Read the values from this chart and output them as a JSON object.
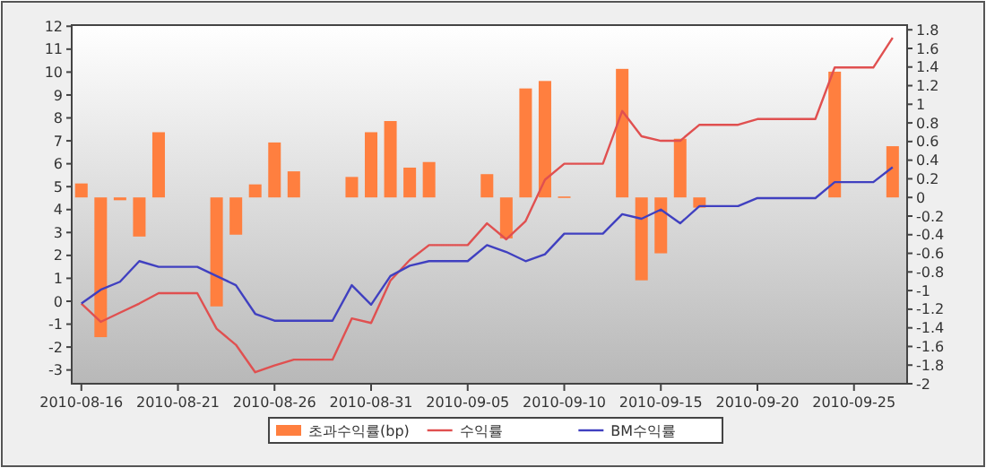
{
  "chart_data": {
    "type": "bar",
    "legend": "bottom",
    "xlim": [
      "2010-08-15T12:00",
      "2010-09-27T18:00"
    ],
    "xticks": [
      {
        "value": "2010-08-16",
        "label": "2010-08-16"
      },
      {
        "value": "2010-08-21",
        "label": "2010-08-21"
      },
      {
        "value": "2010-08-26",
        "label": "2010-08-26"
      },
      {
        "value": "2010-08-31",
        "label": "2010-08-31"
      },
      {
        "value": "2010-09-05",
        "label": "2010-09-05"
      },
      {
        "value": "2010-09-10",
        "label": "2010-09-10"
      },
      {
        "value": "2010-09-15",
        "label": "2010-09-15"
      },
      {
        "value": "2010-09-20",
        "label": "2010-09-20"
      },
      {
        "value": "2010-09-25",
        "label": "2010-09-25"
      }
    ],
    "ylim": [
      -3.6,
      12.05
    ],
    "yticks": [
      -3,
      -2,
      -1,
      0,
      1,
      2,
      3,
      4,
      5,
      6,
      7,
      8,
      9,
      10,
      11,
      12
    ],
    "y2lim": [
      -2,
      1.85
    ],
    "y2ticks": [
      -2,
      -1.8,
      -1.6,
      -1.4,
      -1.2,
      -1,
      -0.8,
      -0.6,
      -0.4,
      -0.2,
      0,
      0.2,
      0.4,
      0.6,
      0.8,
      1,
      1.2,
      1.4,
      1.6,
      1.8
    ],
    "series": [
      {
        "name": "초과수익률(bp)",
        "axis": "y2",
        "color": "#ff7f3f",
        "x": [
          "2010-08-16",
          "2010-08-17",
          "2010-08-18",
          "2010-08-19",
          "2010-08-20",
          "2010-08-23",
          "2010-08-24",
          "2010-08-25",
          "2010-08-26",
          "2010-08-27",
          "2010-08-30",
          "2010-08-31",
          "2010-09-01",
          "2010-09-02",
          "2010-09-03",
          "2010-09-06",
          "2010-09-07",
          "2010-09-08",
          "2010-09-09",
          "2010-09-10",
          "2010-09-13",
          "2010-09-14",
          "2010-09-15",
          "2010-09-16",
          "2010-09-17",
          "2010-09-24",
          "2010-09-27"
        ],
        "values": [
          0.15,
          -1.5,
          -0.03,
          -0.42,
          0.7,
          -1.17,
          -0.4,
          0.14,
          0.59,
          0.28,
          0.22,
          0.7,
          0.82,
          0.32,
          0.38,
          0.25,
          -0.44,
          1.17,
          1.25,
          0.01,
          1.38,
          -0.89,
          -0.6,
          0.63,
          -0.11,
          1.35,
          0.55
        ]
      },
      {
        "name": "수익률",
        "type": "line",
        "color": "#e05050",
        "x": [
          "2010-08-16",
          "2010-08-17",
          "2010-08-18",
          "2010-08-19",
          "2010-08-20",
          "2010-08-22",
          "2010-08-23",
          "2010-08-24",
          "2010-08-25",
          "2010-08-26",
          "2010-08-27",
          "2010-08-29",
          "2010-08-30",
          "2010-08-31",
          "2010-09-01",
          "2010-09-02",
          "2010-09-03",
          "2010-09-05",
          "2010-09-06",
          "2010-09-07",
          "2010-09-08",
          "2010-09-09",
          "2010-09-10",
          "2010-09-12",
          "2010-09-13",
          "2010-09-14",
          "2010-09-15",
          "2010-09-16",
          "2010-09-17",
          "2010-09-19",
          "2010-09-20",
          "2010-09-23",
          "2010-09-24",
          "2010-09-26",
          "2010-09-27"
        ],
        "values": [
          -0.1,
          -0.9,
          -0.5,
          -0.1,
          0.35,
          0.35,
          -1.2,
          -1.9,
          -3.1,
          -2.8,
          -2.55,
          -2.55,
          -0.75,
          -0.95,
          0.9,
          1.8,
          2.45,
          2.45,
          3.4,
          2.7,
          3.5,
          5.3,
          6.0,
          6.0,
          8.3,
          7.2,
          7.0,
          7.0,
          7.7,
          7.7,
          7.95,
          7.95,
          10.2,
          10.2,
          11.5
        ]
      },
      {
        "name": "BM수익률",
        "type": "line",
        "color": "#4040c0",
        "x": [
          "2010-08-16",
          "2010-08-17",
          "2010-08-18",
          "2010-08-19",
          "2010-08-20",
          "2010-08-22",
          "2010-08-23",
          "2010-08-24",
          "2010-08-25",
          "2010-08-26",
          "2010-08-29",
          "2010-08-30",
          "2010-08-31",
          "2010-09-01",
          "2010-09-02",
          "2010-09-03",
          "2010-09-05",
          "2010-09-06",
          "2010-09-07",
          "2010-09-08",
          "2010-09-09",
          "2010-09-10",
          "2010-09-12",
          "2010-09-13",
          "2010-09-14",
          "2010-09-15",
          "2010-09-16",
          "2010-09-17",
          "2010-09-19",
          "2010-09-20",
          "2010-09-23",
          "2010-09-24",
          "2010-09-26",
          "2010-09-27"
        ],
        "values": [
          -0.1,
          0.5,
          0.85,
          1.75,
          1.5,
          1.5,
          1.1,
          0.7,
          -0.55,
          -0.85,
          -0.85,
          0.7,
          -0.15,
          1.1,
          1.55,
          1.75,
          1.75,
          2.45,
          2.15,
          1.75,
          2.05,
          2.95,
          2.95,
          3.8,
          3.6,
          4.0,
          3.4,
          4.15,
          4.15,
          4.5,
          4.5,
          5.2,
          5.2,
          5.85
        ]
      }
    ]
  }
}
